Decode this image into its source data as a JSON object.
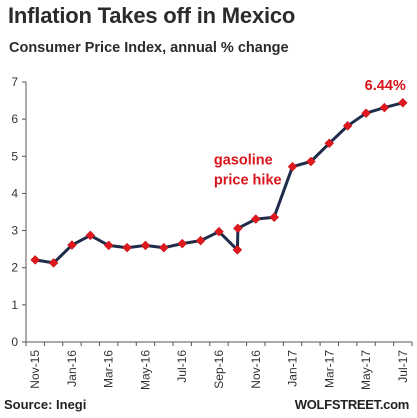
{
  "chart_data": {
    "type": "line",
    "title": "Inflation Takes off in Mexico",
    "subtitle": "Consumer Price Index, annual % change",
    "xlabel": "",
    "ylabel": "",
    "ylim": [
      0,
      7
    ],
    "yticks": [
      0,
      1,
      2,
      3,
      4,
      5,
      6,
      7
    ],
    "grid": false,
    "x": [
      "Nov-15",
      "Dec-15",
      "Jan-16",
      "Feb-16",
      "Mar-16",
      "Apr-16",
      "May-16",
      "Jun-16",
      "Jul-16",
      "Aug-16",
      "Sep-16",
      "Oct-16",
      "Oct-16",
      "Nov-16",
      "Dec-16",
      "Jan-17",
      "Feb-17",
      "Mar-17",
      "Apr-17",
      "May-17",
      "Jun-17",
      "Jul-17"
    ],
    "xtick_labels": [
      "Nov-15",
      "Jan-16",
      "Mar-16",
      "May-16",
      "Jul-16",
      "Sep-16",
      "Nov-16",
      "Jan-17",
      "Mar-17",
      "May-17",
      "Jul-17"
    ],
    "series": [
      {
        "values": [
          2.21,
          2.13,
          2.61,
          2.87,
          2.6,
          2.54,
          2.6,
          2.54,
          2.65,
          2.73,
          2.97,
          2.48,
          3.06,
          3.31,
          3.36,
          4.72,
          4.86,
          5.35,
          5.82,
          6.16,
          6.31,
          6.44
        ]
      }
    ],
    "line_color": "#1f2d4a",
    "marker_color": "#e0191f",
    "annotations": [
      {
        "text": "6.44%",
        "at_index": 21
      },
      {
        "text_lines": [
          "gasoline",
          "price hike"
        ],
        "at_index": 12
      }
    ],
    "source": "Source: Inegi",
    "credit": "WOLFSTREET.com"
  }
}
